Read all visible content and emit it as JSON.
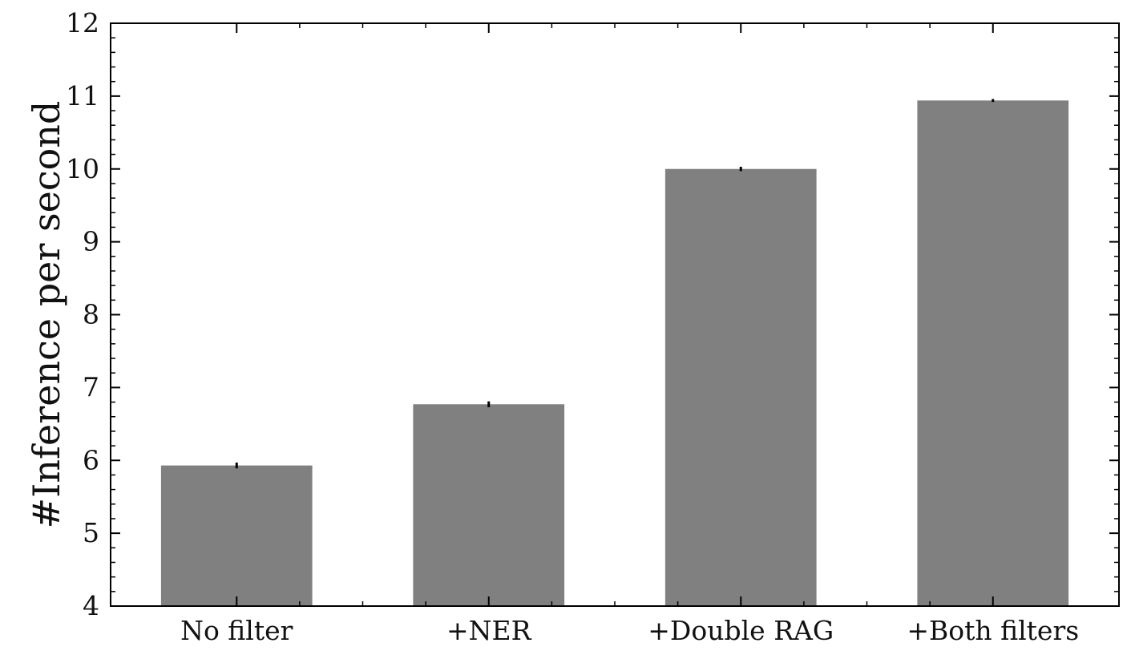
{
  "chart_data": {
    "type": "bar",
    "categories": [
      "No filter",
      "+NER",
      "+Double RAG",
      "+Both filters"
    ],
    "values": [
      5.93,
      6.77,
      10.0,
      10.94
    ],
    "errors": [
      0.04,
      0.04,
      0.03,
      0.02
    ],
    "title": "",
    "xlabel": "",
    "ylabel": "#Inference per second",
    "ylim": [
      4,
      12
    ],
    "y_ticks": [
      "4",
      "5",
      "6",
      "7",
      "8",
      "9",
      "10",
      "11",
      "12"
    ],
    "grid": false,
    "bar_color": "#808080",
    "error_color": "#000000"
  }
}
